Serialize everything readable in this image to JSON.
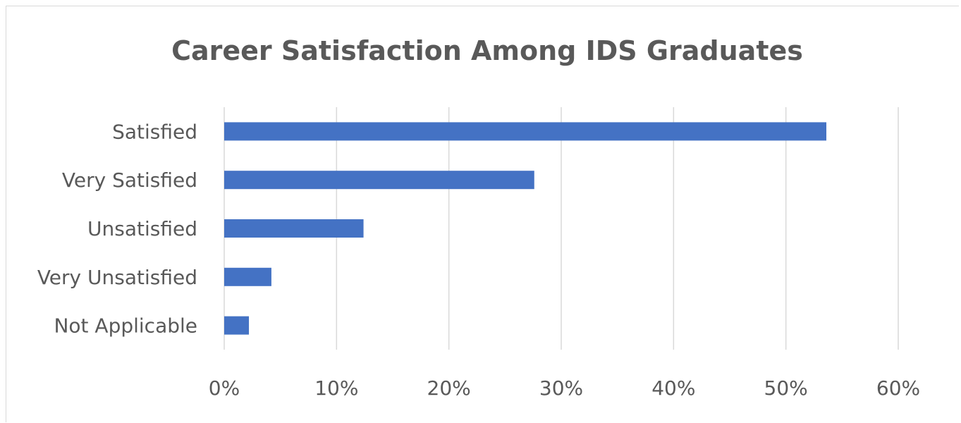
{
  "chart_data": {
    "type": "bar",
    "orientation": "horizontal",
    "title": "Career Satisfaction Among IDS Graduates",
    "categories": [
      "Satisfied",
      "Very Satisfied",
      "Unsatisfied",
      "Very Unsatisfied",
      "Not Applicable"
    ],
    "values": [
      53.6,
      27.6,
      12.4,
      4.2,
      2.2
    ],
    "value_unit": "%",
    "xlim": [
      0,
      60
    ],
    "x_ticks": [
      "0%",
      "10%",
      "20%",
      "30%",
      "40%",
      "50%",
      "60%"
    ],
    "grid": "vertical",
    "legend": "none",
    "bar_color": "#4472c4",
    "gridline_color": "#d9d9d9",
    "text_color": "#595959"
  }
}
